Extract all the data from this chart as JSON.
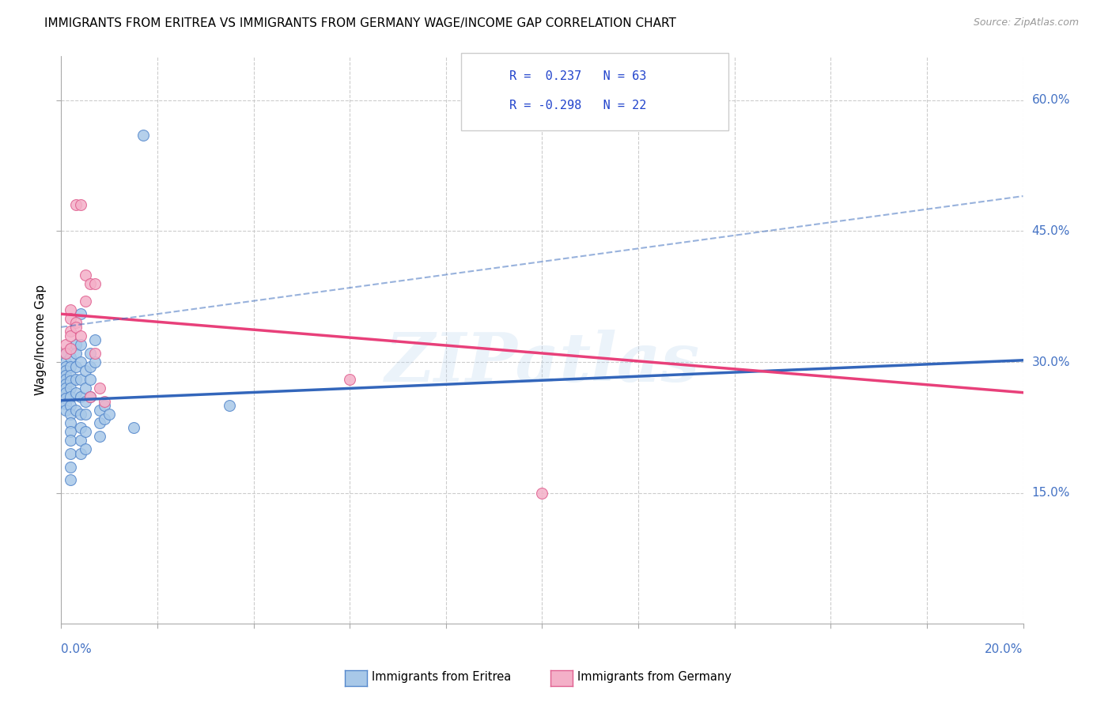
{
  "title": "IMMIGRANTS FROM ERITREA VS IMMIGRANTS FROM GERMANY WAGE/INCOME GAP CORRELATION CHART",
  "source": "Source: ZipAtlas.com",
  "ylabel": "Wage/Income Gap",
  "xmin": 0.0,
  "xmax": 0.2,
  "ymin": 0.0,
  "ymax": 0.65,
  "yticks": [
    0.15,
    0.3,
    0.45,
    0.6
  ],
  "ytick_labels": [
    "15.0%",
    "30.0%",
    "45.0%",
    "60.0%"
  ],
  "color_eritrea": "#a8c8e8",
  "color_eritrea_edge": "#5588cc",
  "color_germany": "#f4b0c8",
  "color_germany_edge": "#e06090",
  "line_color_eritrea": "#3366bb",
  "line_color_germany": "#e8407a",
  "scatter_eritrea": [
    [
      0.001,
      0.31
    ],
    [
      0.001,
      0.3
    ],
    [
      0.001,
      0.295
    ],
    [
      0.001,
      0.29
    ],
    [
      0.001,
      0.285
    ],
    [
      0.001,
      0.28
    ],
    [
      0.001,
      0.275
    ],
    [
      0.001,
      0.27
    ],
    [
      0.001,
      0.265
    ],
    [
      0.001,
      0.258
    ],
    [
      0.001,
      0.252
    ],
    [
      0.001,
      0.245
    ],
    [
      0.002,
      0.315
    ],
    [
      0.002,
      0.305
    ],
    [
      0.002,
      0.295
    ],
    [
      0.002,
      0.285
    ],
    [
      0.002,
      0.278
    ],
    [
      0.002,
      0.27
    ],
    [
      0.002,
      0.26
    ],
    [
      0.002,
      0.25
    ],
    [
      0.002,
      0.24
    ],
    [
      0.002,
      0.23
    ],
    [
      0.002,
      0.22
    ],
    [
      0.002,
      0.21
    ],
    [
      0.002,
      0.195
    ],
    [
      0.002,
      0.18
    ],
    [
      0.002,
      0.165
    ],
    [
      0.003,
      0.32
    ],
    [
      0.003,
      0.31
    ],
    [
      0.003,
      0.295
    ],
    [
      0.003,
      0.28
    ],
    [
      0.003,
      0.265
    ],
    [
      0.003,
      0.245
    ],
    [
      0.004,
      0.355
    ],
    [
      0.004,
      0.32
    ],
    [
      0.004,
      0.3
    ],
    [
      0.004,
      0.28
    ],
    [
      0.004,
      0.26
    ],
    [
      0.004,
      0.24
    ],
    [
      0.004,
      0.225
    ],
    [
      0.004,
      0.21
    ],
    [
      0.004,
      0.195
    ],
    [
      0.005,
      0.29
    ],
    [
      0.005,
      0.27
    ],
    [
      0.005,
      0.255
    ],
    [
      0.005,
      0.24
    ],
    [
      0.005,
      0.22
    ],
    [
      0.005,
      0.2
    ],
    [
      0.006,
      0.31
    ],
    [
      0.006,
      0.295
    ],
    [
      0.006,
      0.28
    ],
    [
      0.006,
      0.26
    ],
    [
      0.007,
      0.325
    ],
    [
      0.007,
      0.3
    ],
    [
      0.008,
      0.245
    ],
    [
      0.008,
      0.23
    ],
    [
      0.008,
      0.215
    ],
    [
      0.009,
      0.25
    ],
    [
      0.009,
      0.235
    ],
    [
      0.01,
      0.24
    ],
    [
      0.015,
      0.225
    ],
    [
      0.017,
      0.56
    ],
    [
      0.035,
      0.25
    ]
  ],
  "scatter_germany": [
    [
      0.001,
      0.32
    ],
    [
      0.001,
      0.31
    ],
    [
      0.002,
      0.36
    ],
    [
      0.002,
      0.35
    ],
    [
      0.002,
      0.335
    ],
    [
      0.002,
      0.33
    ],
    [
      0.002,
      0.315
    ],
    [
      0.003,
      0.48
    ],
    [
      0.003,
      0.345
    ],
    [
      0.003,
      0.34
    ],
    [
      0.004,
      0.48
    ],
    [
      0.004,
      0.33
    ],
    [
      0.005,
      0.4
    ],
    [
      0.005,
      0.37
    ],
    [
      0.006,
      0.39
    ],
    [
      0.006,
      0.26
    ],
    [
      0.007,
      0.39
    ],
    [
      0.007,
      0.31
    ],
    [
      0.008,
      0.27
    ],
    [
      0.009,
      0.255
    ],
    [
      0.06,
      0.28
    ],
    [
      0.1,
      0.15
    ]
  ],
  "watermark": "ZIPatlas",
  "background_color": "#ffffff",
  "grid_color": "#cccccc",
  "right_label_color": "#4472c4",
  "bottom_label_color": "#4472c4",
  "dash_line_x": [
    0.0,
    0.2
  ],
  "dash_line_y": [
    0.34,
    0.49
  ]
}
